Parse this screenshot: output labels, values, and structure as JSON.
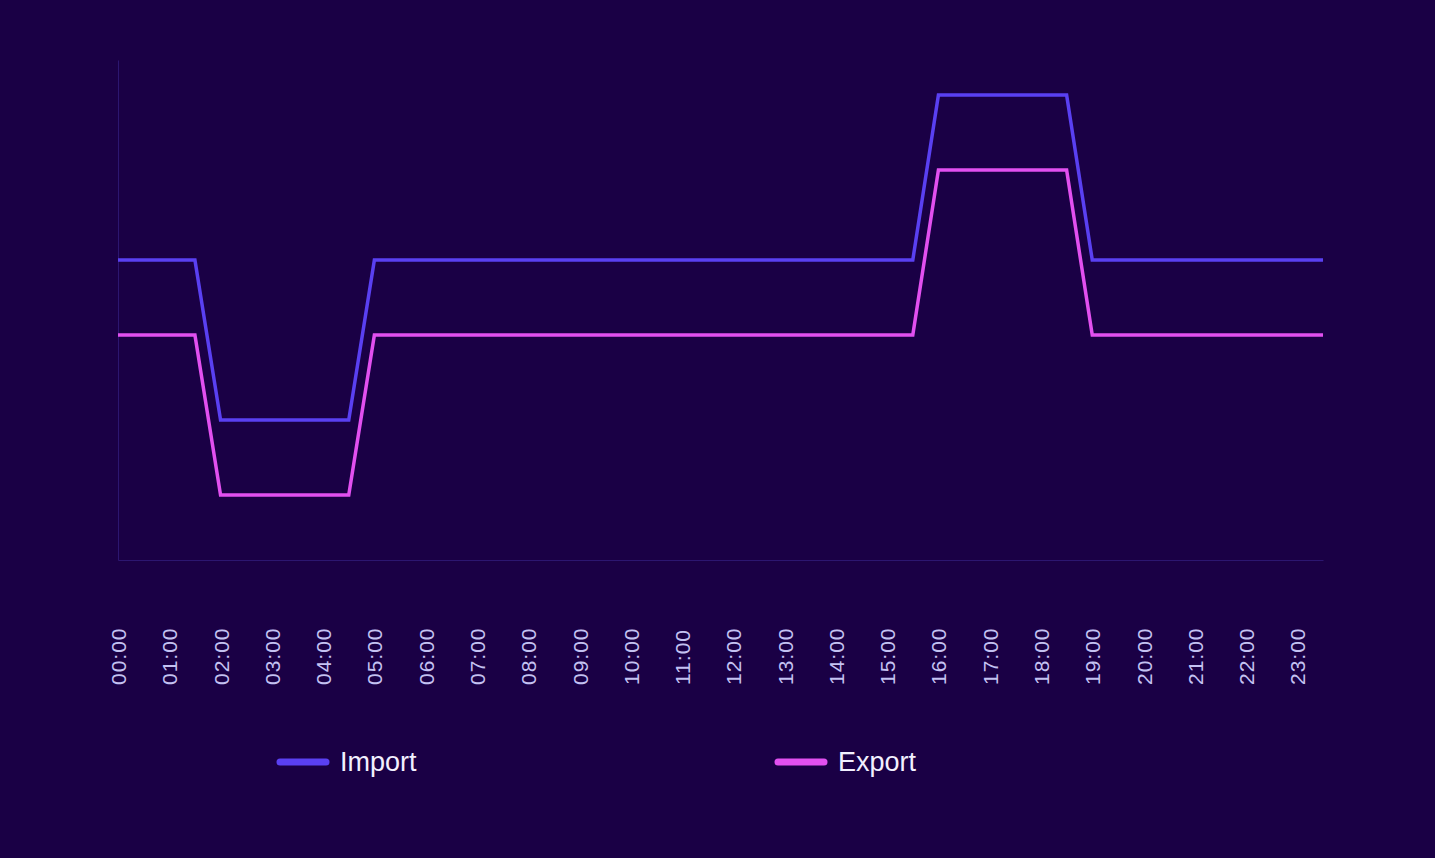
{
  "chart_data": {
    "type": "line",
    "x": [
      0,
      0.5,
      1,
      1.5,
      2,
      2.5,
      3,
      3.5,
      4,
      4.5,
      5,
      5.5,
      6,
      6.5,
      7,
      7.5,
      8,
      8.5,
      9,
      9.5,
      10,
      10.5,
      11,
      11.5,
      12,
      12.5,
      13,
      13.5,
      14,
      14.5,
      15,
      15.5,
      16,
      16.5,
      17,
      17.5,
      18,
      18.5,
      19,
      19.5,
      20,
      20.5,
      21,
      21.5,
      22,
      22.5,
      23,
      23.5
    ],
    "xlim": [
      0,
      23.5
    ],
    "xticks": [
      {
        "value": 0,
        "label": "00:00"
      },
      {
        "value": 1,
        "label": "01:00"
      },
      {
        "value": 2,
        "label": "02:00"
      },
      {
        "value": 3,
        "label": "03:00"
      },
      {
        "value": 4,
        "label": "04:00"
      },
      {
        "value": 5,
        "label": "05:00"
      },
      {
        "value": 6,
        "label": "06:00"
      },
      {
        "value": 7,
        "label": "07:00"
      },
      {
        "value": 8,
        "label": "08:00"
      },
      {
        "value": 9,
        "label": "09:00"
      },
      {
        "value": 10,
        "label": "10:00"
      },
      {
        "value": 11,
        "label": "11:00"
      },
      {
        "value": 12,
        "label": "12:00"
      },
      {
        "value": 13,
        "label": "13:00"
      },
      {
        "value": 14,
        "label": "14:00"
      },
      {
        "value": 15,
        "label": "15:00"
      },
      {
        "value": 16,
        "label": "16:00"
      },
      {
        "value": 17,
        "label": "17:00"
      },
      {
        "value": 18,
        "label": "18:00"
      },
      {
        "value": 19,
        "label": "19:00"
      },
      {
        "value": 20,
        "label": "20:00"
      },
      {
        "value": 21,
        "label": "21:00"
      },
      {
        "value": 22,
        "label": "22:00"
      },
      {
        "value": 23,
        "label": "23:00"
      }
    ],
    "ylim": [
      0,
      100
    ],
    "tick_labels": "x",
    "legend": "bottom",
    "series": [
      {
        "name": "Import",
        "color": "#5a40f2",
        "values": [
          60,
          60,
          60,
          60,
          28,
          28,
          28,
          28,
          28,
          28,
          60,
          60,
          60,
          60,
          60,
          60,
          60,
          60,
          60,
          60,
          60,
          60,
          60,
          60,
          60,
          60,
          60,
          60,
          60,
          60,
          60,
          60,
          93,
          93,
          93,
          93,
          93,
          93,
          60,
          60,
          60,
          60,
          60,
          60,
          60,
          60,
          60,
          60
        ]
      },
      {
        "name": "Export",
        "color": "#e250f0",
        "values": [
          45,
          45,
          45,
          45,
          13,
          13,
          13,
          13,
          13,
          13,
          45,
          45,
          45,
          45,
          45,
          45,
          45,
          45,
          45,
          45,
          45,
          45,
          45,
          45,
          45,
          45,
          45,
          45,
          45,
          45,
          45,
          45,
          78,
          78,
          78,
          78,
          78,
          78,
          45,
          45,
          45,
          45,
          45,
          45,
          45,
          45,
          45,
          45
        ]
      }
    ]
  }
}
